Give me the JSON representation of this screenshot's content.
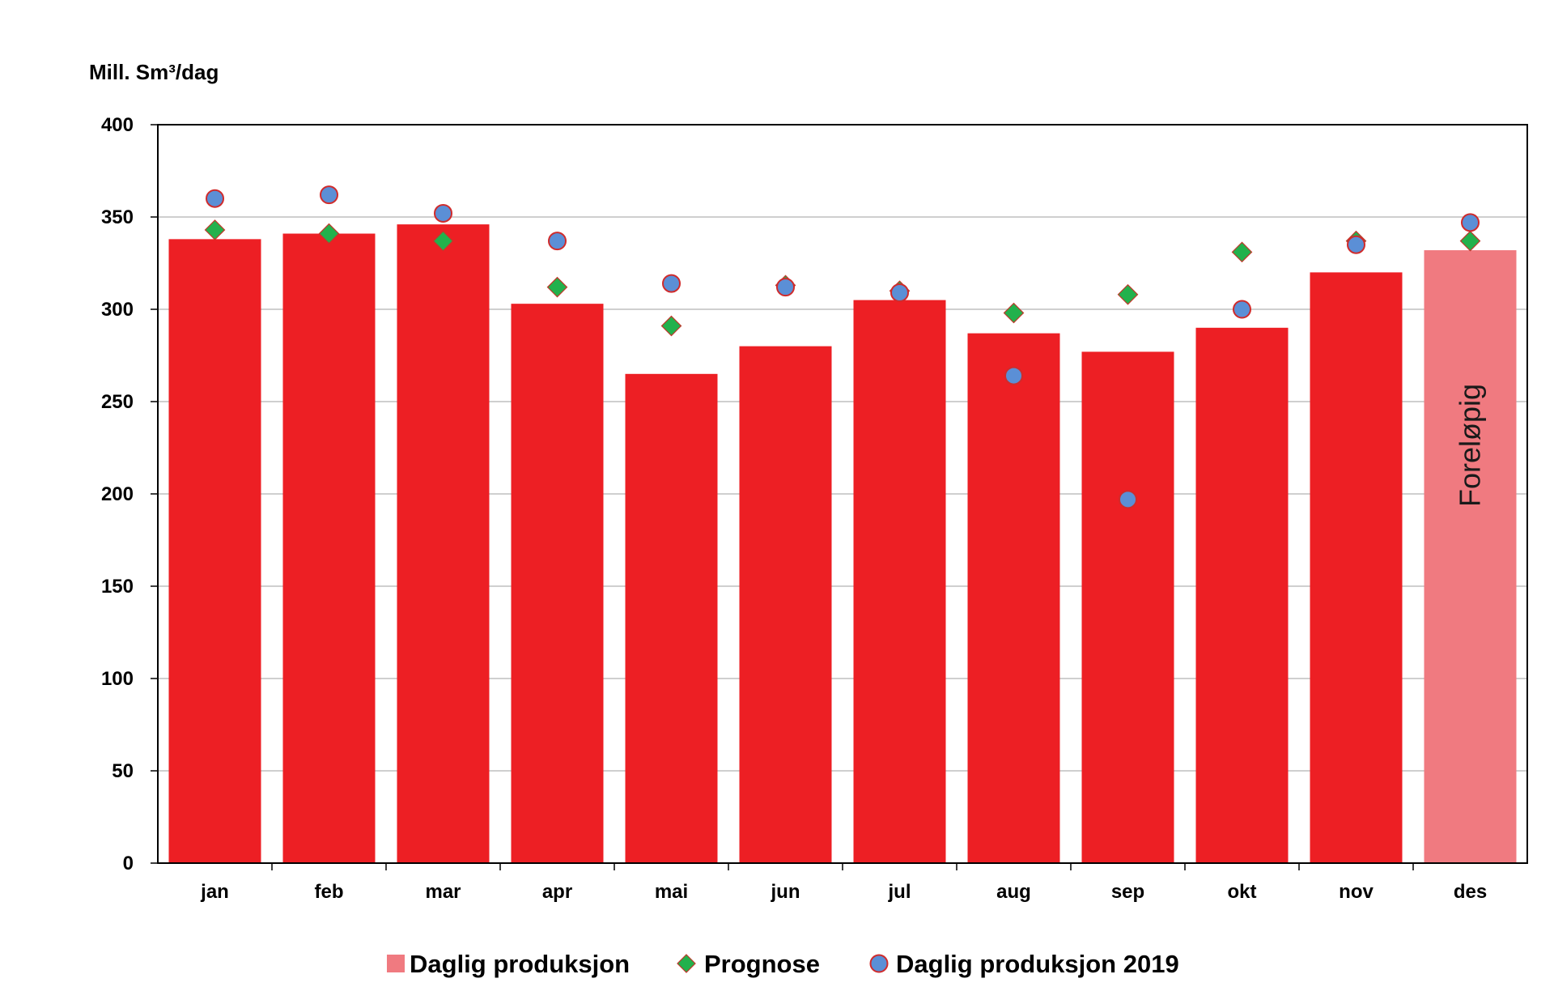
{
  "chart_data": {
    "type": "bar",
    "ylabel": "Mill. Sm³/dag",
    "ylim": [
      0,
      400
    ],
    "yticks": [
      0,
      50,
      100,
      150,
      200,
      250,
      300,
      350,
      400
    ],
    "categories": [
      "jan",
      "feb",
      "mar",
      "apr",
      "mai",
      "jun",
      "jul",
      "aug",
      "sep",
      "okt",
      "nov",
      "des"
    ],
    "grid": "horizontal",
    "legend_position": "bottom",
    "series": [
      {
        "name": "Daglig produksjon",
        "kind": "bar",
        "color": "#ed1f24",
        "preliminary_color": "#f07a80",
        "values": [
          338,
          341,
          346,
          303,
          265,
          280,
          305,
          287,
          277,
          290,
          320,
          332
        ]
      },
      {
        "name": "Prognose",
        "kind": "marker-diamond",
        "color": "#22b14c",
        "values": [
          343,
          341,
          337,
          312,
          291,
          313,
          310,
          298,
          308,
          331,
          337,
          337
        ]
      },
      {
        "name": "Daglig produksjon 2019",
        "kind": "marker-circle",
        "color": "#5b8fd6",
        "edge_color": "#d02b2b",
        "values": [
          360,
          362,
          352,
          337,
          314,
          312,
          309,
          264,
          197,
          300,
          335,
          347
        ]
      }
    ],
    "annotations": [
      {
        "category": "des",
        "text": "Foreløpig"
      }
    ],
    "preliminary_category": "des"
  }
}
